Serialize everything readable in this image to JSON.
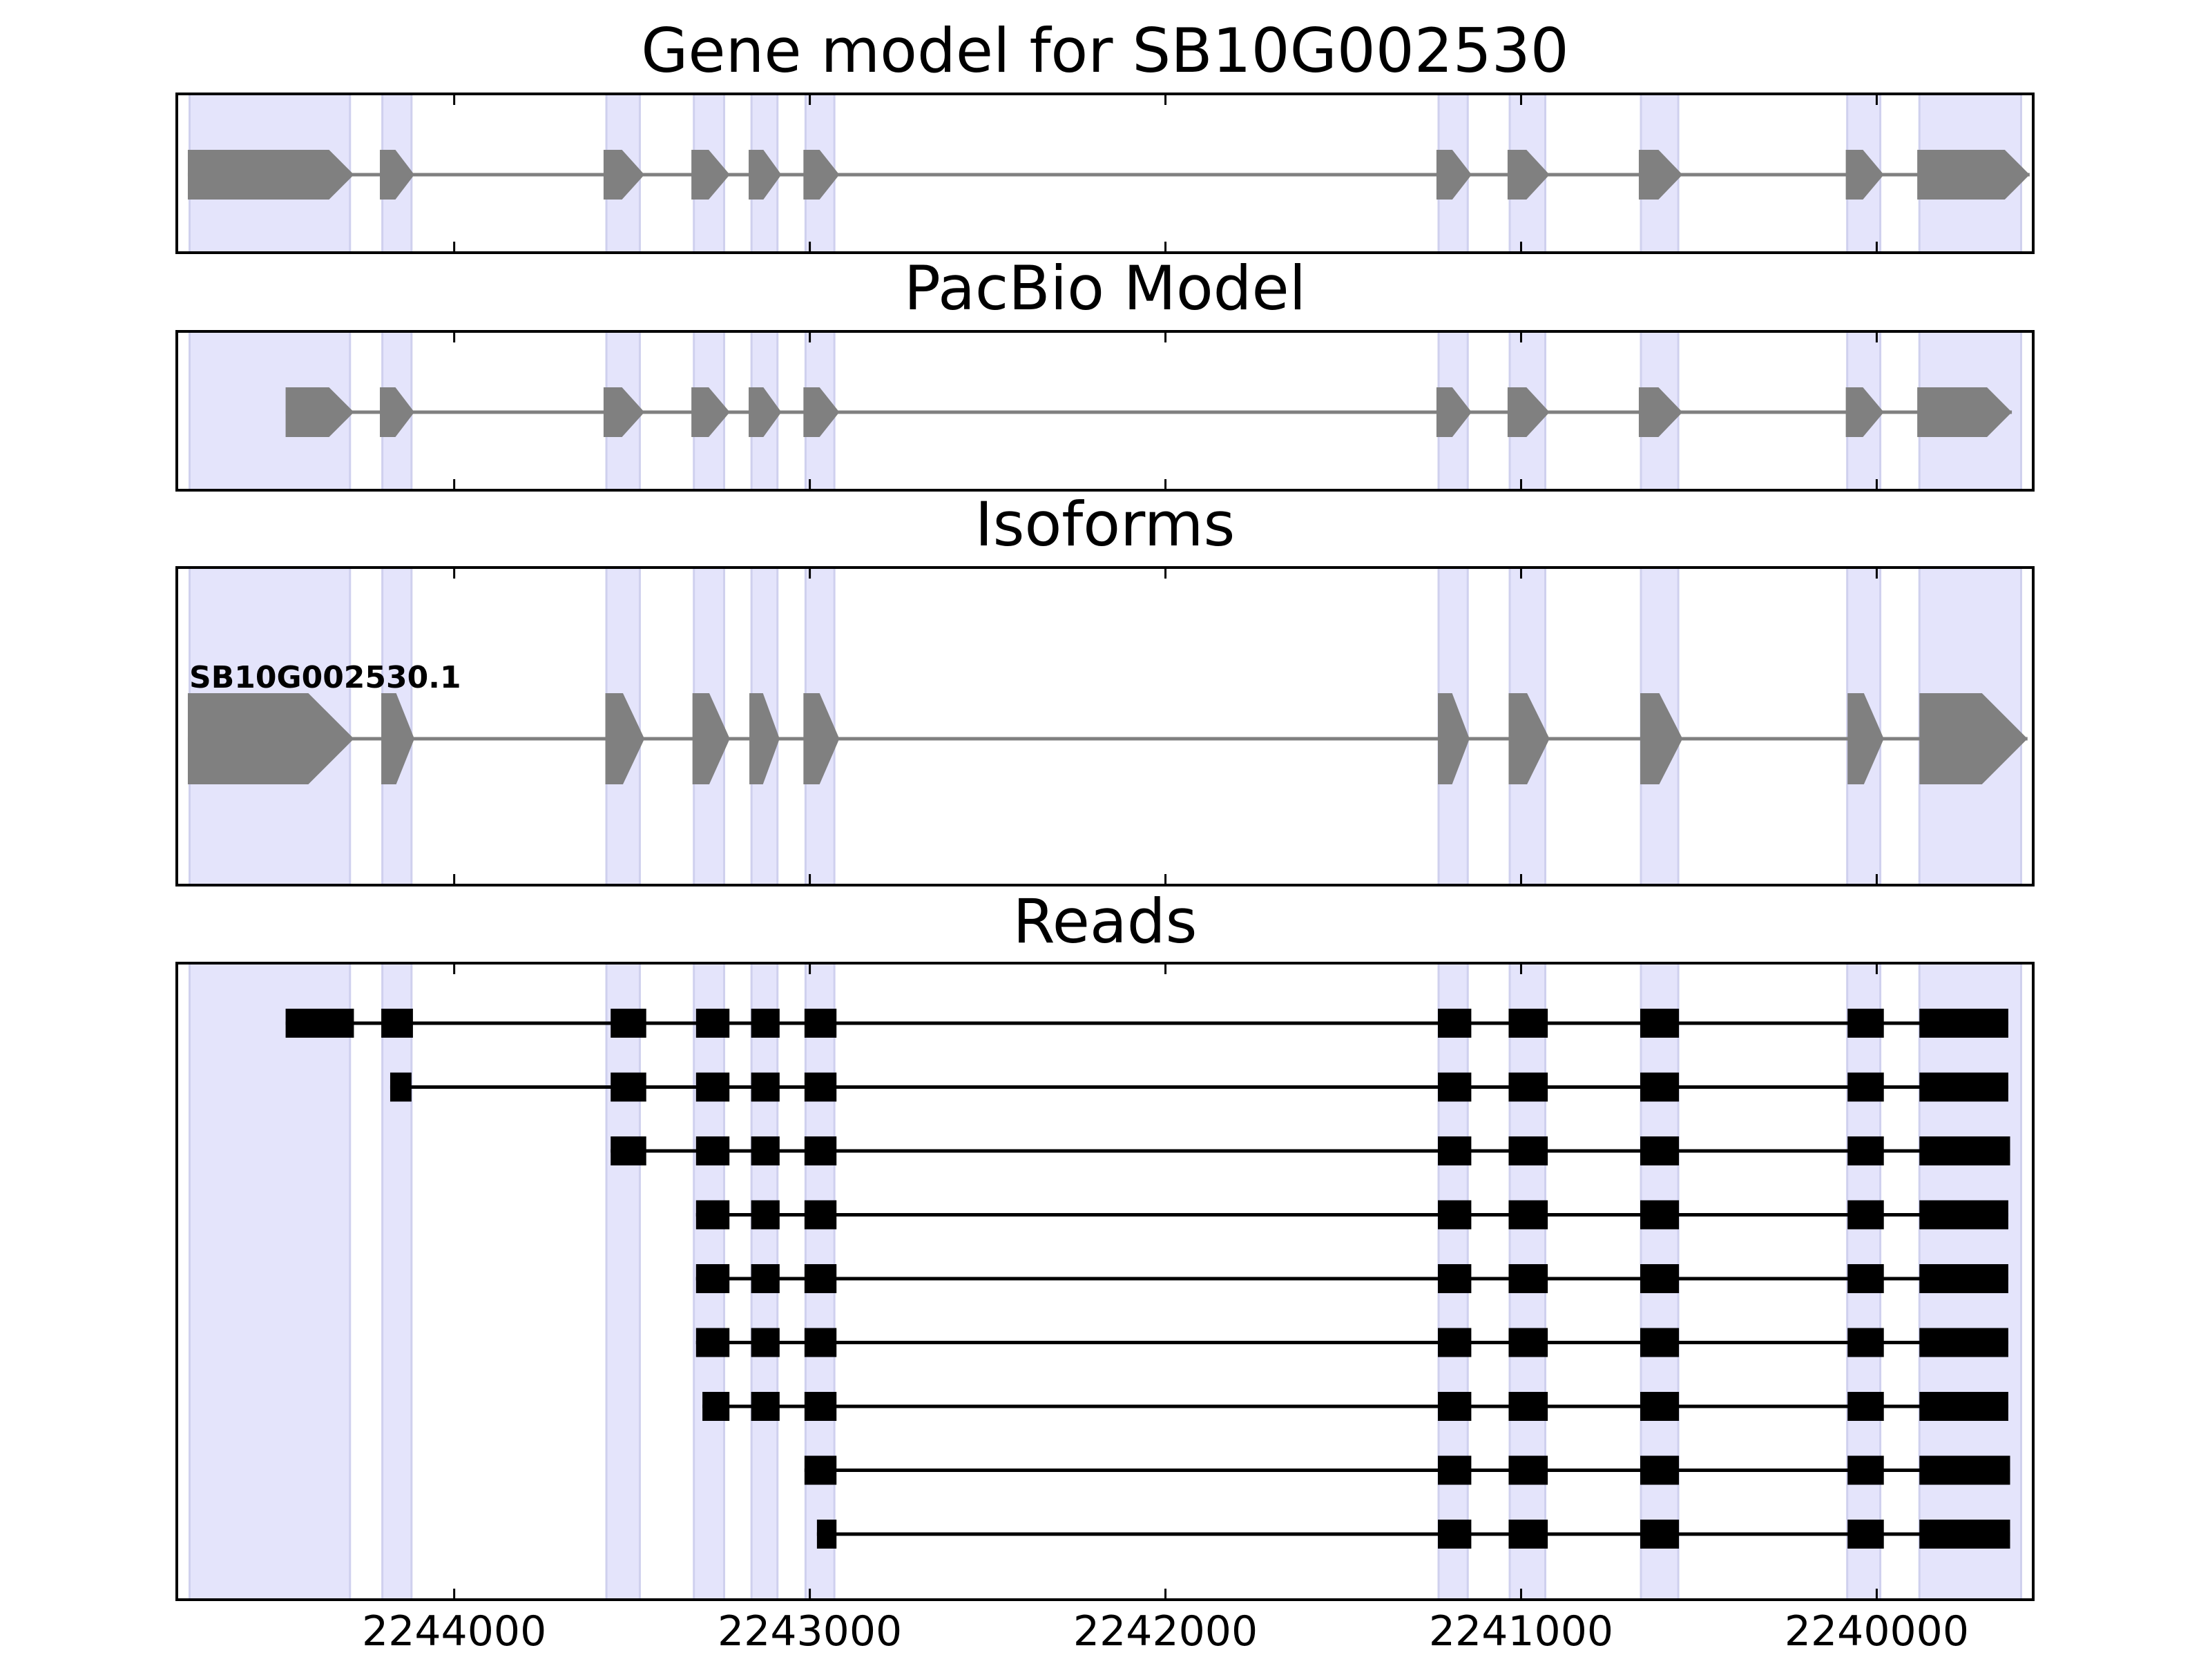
{
  "chart_data": {
    "type": "gene-structure",
    "x_axis": {
      "reversed": true,
      "xlim": [
        2244780,
        2239560
      ],
      "ticks": [
        2244000,
        2243000,
        2242000,
        2241000,
        2240000
      ],
      "tick_labels": [
        "2244000",
        "2243000",
        "2242000",
        "2241000",
        "2240000"
      ]
    },
    "highlight_color": "#e4e4fb",
    "gene_color": "#808080",
    "read_color": "#000000",
    "highlight_regions": [
      [
        2244744,
        2244293
      ],
      [
        2244202,
        2244120
      ],
      [
        2243572,
        2243478
      ],
      [
        2243326,
        2243241
      ],
      [
        2243164,
        2243091
      ],
      [
        2243012,
        2242931
      ],
      [
        2241232,
        2241150
      ],
      [
        2241032,
        2240932
      ],
      [
        2240663,
        2240558
      ],
      [
        2240083,
        2239990
      ],
      [
        2239880,
        2239594
      ]
    ],
    "panels": [
      {
        "title": "Gene model for SB10G002530",
        "features": [
          {
            "label": "",
            "exons": [
              [
                2244749,
                2244282
              ],
              [
                2244209,
                2244112
              ],
              [
                2243580,
                2243465
              ],
              [
                2243333,
                2243225
              ],
              [
                2243172,
                2243080
              ],
              [
                2243018,
                2242917
              ],
              [
                2241238,
                2241139
              ],
              [
                2241038,
                2240920
              ],
              [
                2240669,
                2240546
              ],
              [
                2240087,
                2239980
              ],
              [
                2239886,
                2239570
              ]
            ]
          }
        ]
      },
      {
        "title": "PacBio Model",
        "features": [
          {
            "label": "",
            "exons": [
              [
                2244474,
                2244282
              ],
              [
                2244209,
                2244112
              ],
              [
                2243580,
                2243465
              ],
              [
                2243333,
                2243225
              ],
              [
                2243172,
                2243080
              ],
              [
                2243018,
                2242917
              ],
              [
                2241238,
                2241139
              ],
              [
                2241038,
                2240920
              ],
              [
                2240669,
                2240546
              ],
              [
                2240087,
                2239980
              ],
              [
                2239886,
                2239620
              ]
            ]
          }
        ]
      },
      {
        "title": "Isoforms",
        "features": [
          {
            "label": "SB10G002530.1",
            "exons": [
              [
                2244749,
                2244282
              ],
              [
                2244205,
                2244112
              ],
              [
                2243575,
                2243465
              ],
              [
                2243330,
                2243225
              ],
              [
                2243170,
                2243085
              ],
              [
                2243018,
                2242917
              ],
              [
                2241234,
                2241145
              ],
              [
                2241035,
                2240920
              ],
              [
                2240665,
                2240546
              ],
              [
                2240082,
                2239980
              ],
              [
                2239880,
                2239576
              ]
            ]
          }
        ]
      },
      {
        "title": "Reads",
        "reads": [
          {
            "exons": [
              [
                2244474,
                2244282
              ],
              [
                2244205,
                2244116
              ],
              [
                2243560,
                2243460
              ],
              [
                2243320,
                2243226
              ],
              [
                2243165,
                2243085
              ],
              [
                2243015,
                2242925
              ],
              [
                2241234,
                2241140
              ],
              [
                2241035,
                2240925
              ],
              [
                2240665,
                2240556
              ],
              [
                2240082,
                2239980
              ],
              [
                2239880,
                2239630
              ]
            ]
          },
          {
            "exons": [
              [
                2244180,
                2244120
              ],
              [
                2243560,
                2243460
              ],
              [
                2243320,
                2243226
              ],
              [
                2243165,
                2243085
              ],
              [
                2243015,
                2242925
              ],
              [
                2241234,
                2241140
              ],
              [
                2241035,
                2240925
              ],
              [
                2240665,
                2240556
              ],
              [
                2240082,
                2239980
              ],
              [
                2239880,
                2239630
              ]
            ]
          },
          {
            "exons": [
              [
                2243560,
                2243460
              ],
              [
                2243320,
                2243226
              ],
              [
                2243165,
                2243085
              ],
              [
                2243015,
                2242925
              ],
              [
                2241234,
                2241140
              ],
              [
                2241035,
                2240925
              ],
              [
                2240665,
                2240556
              ],
              [
                2240082,
                2239980
              ],
              [
                2239880,
                2239625
              ]
            ]
          },
          {
            "exons": [
              [
                2243320,
                2243226
              ],
              [
                2243165,
                2243085
              ],
              [
                2243015,
                2242925
              ],
              [
                2241234,
                2241140
              ],
              [
                2241035,
                2240925
              ],
              [
                2240665,
                2240556
              ],
              [
                2240082,
                2239980
              ],
              [
                2239880,
                2239630
              ]
            ]
          },
          {
            "exons": [
              [
                2243320,
                2243226
              ],
              [
                2243165,
                2243085
              ],
              [
                2243015,
                2242925
              ],
              [
                2241234,
                2241140
              ],
              [
                2241035,
                2240925
              ],
              [
                2240665,
                2240556
              ],
              [
                2240082,
                2239980
              ],
              [
                2239880,
                2239630
              ]
            ]
          },
          {
            "exons": [
              [
                2243320,
                2243226
              ],
              [
                2243165,
                2243085
              ],
              [
                2243015,
                2242925
              ],
              [
                2241234,
                2241140
              ],
              [
                2241035,
                2240925
              ],
              [
                2240665,
                2240556
              ],
              [
                2240082,
                2239980
              ],
              [
                2239880,
                2239630
              ]
            ]
          },
          {
            "exons": [
              [
                2243302,
                2243226
              ],
              [
                2243165,
                2243085
              ],
              [
                2243015,
                2242925
              ],
              [
                2241234,
                2241140
              ],
              [
                2241035,
                2240925
              ],
              [
                2240665,
                2240556
              ],
              [
                2240082,
                2239980
              ],
              [
                2239880,
                2239630
              ]
            ]
          },
          {
            "exons": [
              [
                2243015,
                2242925
              ],
              [
                2241234,
                2241140
              ],
              [
                2241035,
                2240925
              ],
              [
                2240665,
                2240556
              ],
              [
                2240082,
                2239980
              ],
              [
                2239880,
                2239625
              ]
            ]
          },
          {
            "exons": [
              [
                2242980,
                2242925
              ],
              [
                2241234,
                2241140
              ],
              [
                2241035,
                2240925
              ],
              [
                2240665,
                2240556
              ],
              [
                2240082,
                2239980
              ],
              [
                2239880,
                2239625
              ]
            ]
          }
        ]
      }
    ]
  }
}
